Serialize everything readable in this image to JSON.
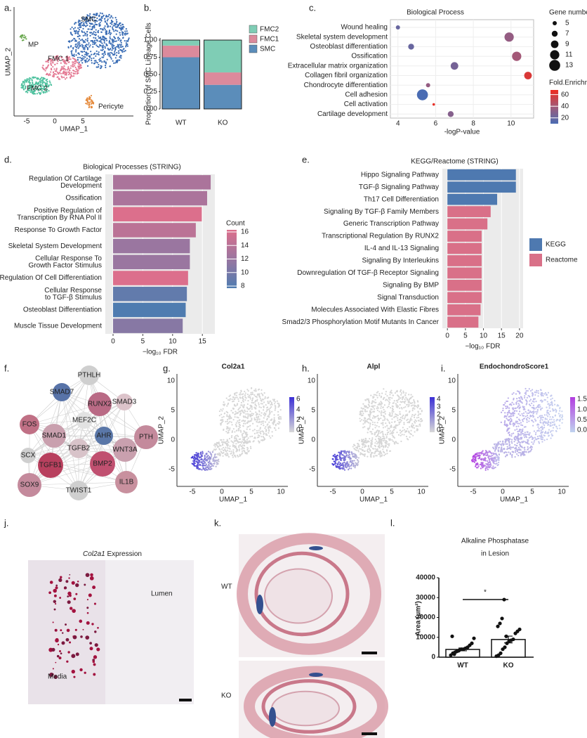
{
  "panel_labels": [
    "a.",
    "b.",
    "c.",
    "d.",
    "e.",
    "f.",
    "g.",
    "h.",
    "i.",
    "j.",
    "k.",
    "l."
  ],
  "umap": {
    "xlabel": "UMAP_1",
    "ylabel": "UMAP_2",
    "xticks": [
      -5,
      0,
      5
    ],
    "clusters": [
      "MP",
      "SMC",
      "FMC 1",
      "FMC 2",
      "Pericyte"
    ]
  },
  "chart_data": [
    {
      "type": "stacked_bar",
      "ylabel": "Proportion of SMC Lineage Cells",
      "categories": [
        "WT",
        "KO"
      ],
      "series": [
        {
          "name": "SMC",
          "color": "#5b8dba",
          "values": [
            0.75,
            0.35
          ]
        },
        {
          "name": "FMC1",
          "color": "#dc8a9c",
          "values": [
            0.17,
            0.18
          ]
        },
        {
          "name": "FMC2",
          "color": "#7fcdb5",
          "values": [
            0.08,
            0.47
          ]
        }
      ],
      "ylim": [
        0,
        1
      ],
      "yticks": [
        {
          "value": 0,
          "label": "0.00"
        },
        {
          "value": 0.25,
          "label": "0.25"
        },
        {
          "value": 0.5,
          "label": "0.50"
        },
        {
          "value": 0.75,
          "label": "0.75"
        },
        {
          "value": 1,
          "label": "1.00"
        }
      ]
    },
    {
      "type": "bubble",
      "title": "Biological Process",
      "xlabel": "-logP-value",
      "categories": [
        "Wound healing",
        "Skeletal system development",
        "Osteoblast differentiation",
        "Ossification",
        "Extracellular matrix organization",
        "Collagen fibril organization",
        "Chondrocyte differentiation",
        "Cell adhesion",
        "Cell activation",
        "Cartilage development"
      ],
      "values": [
        4.0,
        9.9,
        4.7,
        10.3,
        7.0,
        10.9,
        5.6,
        5.3,
        5.9,
        6.8
      ],
      "sizes": [
        5,
        11,
        7,
        11,
        9,
        9,
        5,
        13,
        3,
        7
      ],
      "fold": [
        20,
        35,
        20,
        40,
        25,
        60,
        35,
        10,
        65,
        30
      ],
      "xlim": [
        3.6,
        11.2
      ],
      "xticks": [
        4,
        6,
        8,
        10
      ],
      "size_title": "Gene number",
      "size_legend": [
        5,
        7,
        9,
        11,
        13
      ],
      "color_title": "Fold.Enrichment",
      "color_ticks": [
        20,
        40,
        60
      ],
      "color_lim": [
        10,
        68
      ],
      "colors": [
        "#4a6cb3",
        "#a05a7a",
        "#ef2b1e"
      ]
    },
    {
      "type": "hbar",
      "title": "Biological Processes (STRING)",
      "xlabel": "−log₁₀ FDR",
      "categories": [
        [
          "Regulation Of Cartilage",
          "Development"
        ],
        [
          "Ossification"
        ],
        [
          "Positive Regulation of",
          "Transcription By RNA Pol II"
        ],
        [
          "Response To Growth Factor"
        ],
        [
          "Skeletal System Development"
        ],
        [
          "Cellular Response To",
          "Growth Factor Stimulus"
        ],
        [
          "Regulation Of Cell Differentiation"
        ],
        [
          "Cellular Response",
          "to TGF-β Stimulus"
        ],
        [
          "Osteoblast Differentiation"
        ],
        [
          "Muscle Tissue Development"
        ]
      ],
      "values": [
        16.4,
        15.8,
        14.9,
        13.9,
        12.9,
        12.9,
        12.6,
        12.4,
        12.2,
        11.7
      ],
      "counts": [
        13,
        13,
        16,
        14,
        12,
        12,
        16,
        9,
        8,
        11
      ],
      "xlim": [
        -1.3,
        17.1
      ],
      "xticks": [
        0,
        5,
        10,
        15
      ],
      "grid": true,
      "color_title": "Count",
      "color_ticks": [
        8,
        10,
        12,
        14,
        16
      ],
      "colors": [
        "#4f7cb0",
        "#9a76a0",
        "#dc6f8c"
      ]
    },
    {
      "type": "hbar",
      "title": "KEGG/Reactome (STRING)",
      "xlabel": "−log₁₀ FDR",
      "categories": [
        "Hippo Signaling Pathway",
        "TGF-β Signaling Pathway",
        "Th17 Cell Differentiation",
        "Signaling By TGF-β Family Members",
        "Generic Transcription Pathway",
        "Transcriptional Regulation By RUNX2",
        "IL-4 and IL-13 Signaling",
        "Signaling By Interleukins",
        "Downregulation Of TGF-β Receptor Signaling",
        "Signaling By BMP",
        "Signal Transduction",
        "Molecules Associated With Elastic Fibres",
        "Smad2/3 Phosphorylation Motif Mutants In Cancer"
      ],
      "values": [
        19.0,
        19.0,
        13.8,
        12.0,
        11.1,
        9.5,
        9.5,
        9.5,
        9.5,
        9.5,
        9.5,
        9.2,
        8.6
      ],
      "groups": [
        "KEGG",
        "KEGG",
        "KEGG",
        "Reactome",
        "Reactome",
        "Reactome",
        "Reactome",
        "Reactome",
        "Reactome",
        "Reactome",
        "Reactome",
        "Reactome",
        "Reactome"
      ],
      "legend": [
        {
          "name": "KEGG",
          "color": "#4e79b0"
        },
        {
          "name": "Reactome",
          "color": "#d97088"
        }
      ],
      "xlim": [
        -1.4,
        21
      ],
      "xticks": [
        0,
        5,
        10,
        15,
        20
      ],
      "grid": true
    },
    {
      "type": "bar_dot",
      "title": [
        "Alkaline Phosphatase",
        "in Lesion"
      ],
      "ylabel": "Area (µm²)",
      "categories": [
        "WT",
        "KO"
      ],
      "values": [
        3900,
        8900
      ],
      "errors": [
        700,
        1700
      ],
      "points": [
        [
          1000,
          2000,
          2500,
          3000,
          3500,
          4000,
          4000,
          4500,
          5000,
          6000,
          7000,
          9500,
          10500,
          1500,
          2800,
          3200
        ],
        [
          500,
          1000,
          2000,
          4000,
          5000,
          7000,
          8000,
          8500,
          9000,
          12000,
          13000,
          14000,
          15500,
          17000,
          19500,
          29000,
          10500
        ]
      ],
      "ylim": [
        0,
        40000
      ],
      "yticks": [
        0,
        10000,
        20000,
        30000,
        40000
      ],
      "annotation": "*"
    }
  ],
  "network": {
    "nodes": [
      {
        "label": "PTHLH",
        "color": "#cfcfcf"
      },
      {
        "label": "SMAD7",
        "color": "#5873a8"
      },
      {
        "label": "RUNX2",
        "color": "#b96a85"
      },
      {
        "label": "SMAD3",
        "color": "#dcc3ca"
      },
      {
        "label": "MEF2C",
        "color": "#e2e2e2"
      },
      {
        "label": "FOS",
        "color": "#c07085"
      },
      {
        "label": "SMAD1",
        "color": "#c9a0ae"
      },
      {
        "label": "AHR",
        "color": "#5a77a8"
      },
      {
        "label": "PTH",
        "color": "#c48a9c"
      },
      {
        "label": "TGFB2",
        "color": "#d8c3c9"
      },
      {
        "label": "WNT3A",
        "color": "#c9a0ae"
      },
      {
        "label": "SCX",
        "color": "#cfcfcf"
      },
      {
        "label": "TGFB1",
        "color": "#b8405e"
      },
      {
        "label": "BMP2",
        "color": "#c05070"
      },
      {
        "label": "SOX9",
        "color": "#c48a9c"
      },
      {
        "label": "IL1B",
        "color": "#c8909e"
      },
      {
        "label": "TWIST1",
        "color": "#cfcfcf"
      }
    ]
  },
  "feature_plots": [
    {
      "title": "Col2a1",
      "xlabel": "UMAP_1",
      "ylabel": "UMAP_2",
      "xticks": [
        -5,
        0,
        5,
        10
      ],
      "yticks": [
        10,
        5,
        0,
        -5
      ],
      "scale_ticks": [
        0,
        2,
        4,
        6
      ],
      "colors": [
        "#d8d8d8",
        "#3b2fd6"
      ]
    },
    {
      "title": "Alpl",
      "xlabel": "UMAP_1",
      "ylabel": "UMAP_2",
      "xticks": [
        -5,
        0,
        5,
        10
      ],
      "yticks": [
        10,
        5,
        0,
        -5
      ],
      "scale_ticks": [
        0,
        1,
        2,
        3,
        4
      ],
      "colors": [
        "#d8d8d8",
        "#3b2fd6"
      ]
    },
    {
      "title": "EndochondroScore1",
      "xlabel": "UMAP_1",
      "ylabel": "UMAP_2",
      "xticks": [
        -5,
        0,
        5,
        10
      ],
      "yticks": [
        10,
        5,
        0,
        -5
      ],
      "scale_ticks": [
        {
          "value": 0,
          "label": "0.0"
        },
        {
          "value": 0.5,
          "label": "0.5"
        },
        {
          "value": 1,
          "label": "1.0"
        },
        {
          "value": 1.5,
          "label": "1.5"
        }
      ],
      "colors": [
        "#bfd3ee",
        "#b23de0"
      ]
    }
  ],
  "histology_j": {
    "title": [
      "Col2a1",
      " Expression"
    ],
    "labels": [
      "Lumen",
      "Media"
    ]
  },
  "histology_k": {
    "labels": [
      "WT",
      "KO"
    ]
  }
}
